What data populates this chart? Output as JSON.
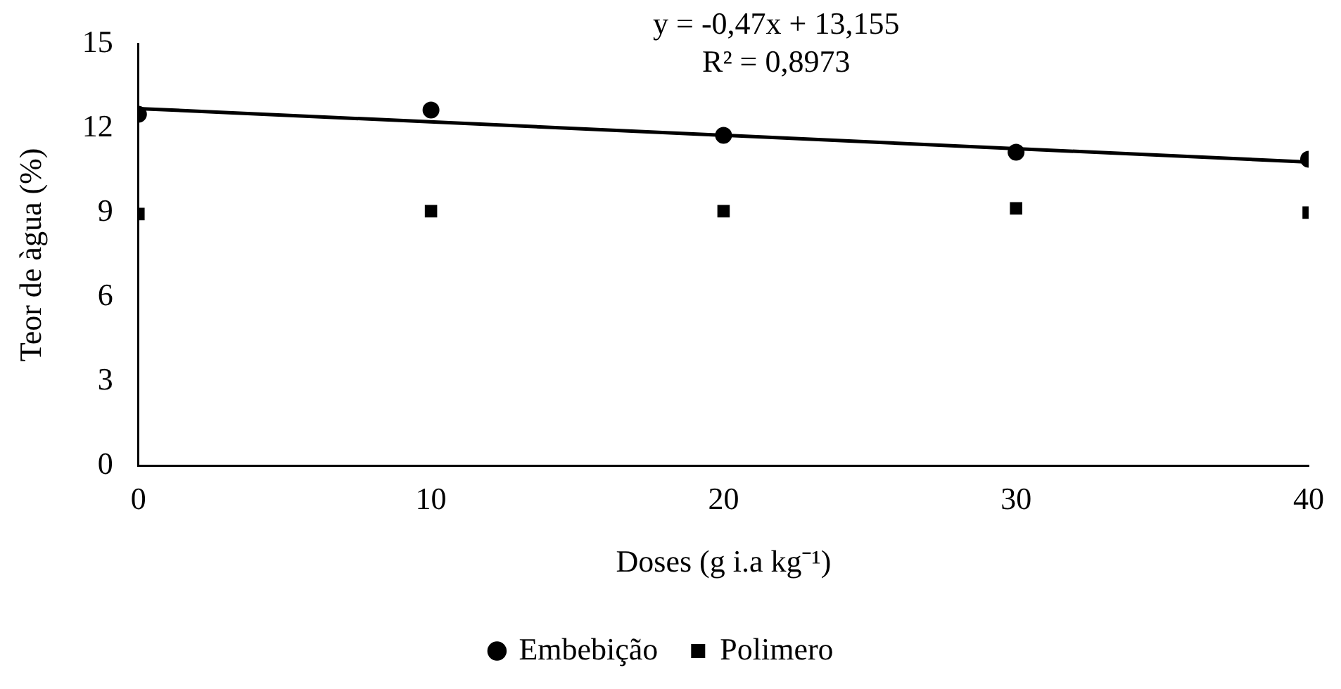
{
  "chart_data": {
    "type": "scatter",
    "xlabel": "Doses (g i.a kg⁻¹)",
    "ylabel": "Teor de àgua (%)",
    "annotations": [
      "y = -0,47x + 13,155",
      "R² = 0,8973"
    ],
    "x": [
      0,
      10,
      20,
      30,
      40
    ],
    "series": [
      {
        "name": "Embebição",
        "color": "#000000",
        "marker": "circle",
        "values": [
          12.5,
          12.65,
          11.75,
          11.15,
          10.9
        ]
      },
      {
        "name": "Polimero",
        "color": "#000000",
        "marker": "square",
        "values": [
          8.95,
          9.05,
          9.05,
          9.15,
          9.0
        ]
      },
      {
        "type": "line",
        "color": "#000000",
        "marker": "none",
        "x": [
          0,
          40
        ],
        "values": [
          12.7,
          10.8
        ]
      }
    ],
    "xlim": [
      0,
      40
    ],
    "xticks": [
      0,
      10,
      20,
      30,
      40
    ],
    "ylim": [
      0,
      15
    ],
    "yticks": [
      0,
      3,
      6,
      9,
      12,
      15
    ],
    "grid": false,
    "legend": "bottom"
  }
}
